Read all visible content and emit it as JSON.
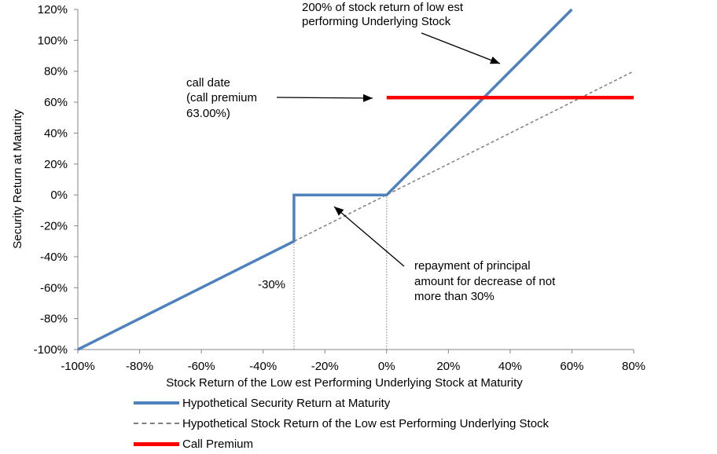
{
  "chart_data": {
    "type": "line",
    "xlabel": "Stock Return of the Low est Performing Underlying Stock at Maturity",
    "ylabel": "Security Return at Maturity",
    "xlim": [
      -100,
      80
    ],
    "ylim": [
      -100,
      120
    ],
    "x_ticks": [
      "-100%",
      "-80%",
      "-60%",
      "-40%",
      "-20%",
      "0%",
      "20%",
      "40%",
      "60%",
      "80%"
    ],
    "y_ticks": [
      "-100%",
      "-80%",
      "-60%",
      "-40%",
      "-20%",
      "0%",
      "20%",
      "40%",
      "60%",
      "80%",
      "100%",
      "120%"
    ],
    "grid": false,
    "legend_position": "bottom",
    "series": [
      {
        "name": "Hypothetical Security Return at Maturity",
        "color": "#4F81BD",
        "style": "solid",
        "points": [
          [
            -100,
            -100
          ],
          [
            -30,
            -30
          ],
          [
            -30,
            0
          ],
          [
            0,
            0
          ],
          [
            60,
            120
          ]
        ]
      },
      {
        "name": "Hypothetical Stock Return of the Low est Performing Underlying Stock",
        "color": "#7F7F7F",
        "style": "dashed",
        "points": [
          [
            -100,
            -100
          ],
          [
            80,
            80
          ]
        ]
      },
      {
        "name": "Call Premium",
        "color": "#FF0000",
        "style": "solid",
        "points": [
          [
            0,
            63
          ],
          [
            80,
            63
          ]
        ]
      }
    ],
    "reference_lines": [
      {
        "x": -30,
        "y_from": -100,
        "y_to": -30
      },
      {
        "x": 0,
        "y_from": -100,
        "y_to": 0
      }
    ],
    "annotations": {
      "top_right": [
        "200% of stock return of low est",
        "performing Underlying Stock"
      ],
      "call": [
        "call date",
        "(call premium",
        "63.00%)"
      ],
      "principal": [
        "repayment of principal",
        "amount for decrease of not",
        "more than 30%"
      ],
      "minus30": "-30%"
    }
  }
}
